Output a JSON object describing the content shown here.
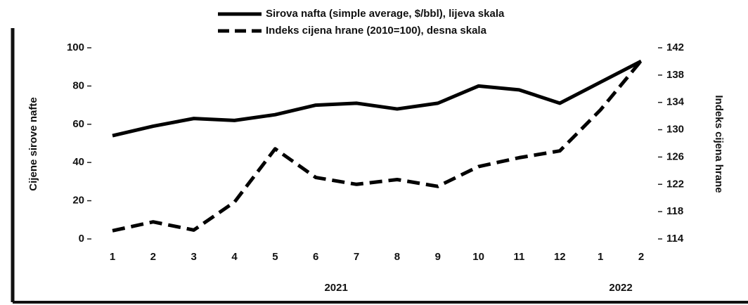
{
  "chart_data": {
    "type": "line",
    "legend": "top",
    "categories": [
      "1",
      "2",
      "3",
      "4",
      "5",
      "6",
      "7",
      "8",
      "9",
      "10",
      "11",
      "12",
      "1",
      "2"
    ],
    "year_labels": [
      "2021",
      "2022"
    ],
    "year_spans": [
      [
        0,
        11
      ],
      [
        12,
        13
      ]
    ],
    "ylabel": "Cijene sirove nafte",
    "y2label": "Indeks cijena hrane",
    "ylim": [
      0,
      100
    ],
    "yticks": [
      0,
      20,
      40,
      60,
      80,
      100
    ],
    "y2lim": [
      114,
      142
    ],
    "y2ticks": [
      114,
      118,
      122,
      126,
      130,
      134,
      138,
      142
    ],
    "series": [
      {
        "name": "Sirova nafta (simple average, $/bbl), lijeva skala",
        "color": "#000000",
        "dash": false,
        "values": [
          54,
          59,
          63,
          62,
          65,
          70,
          71,
          68,
          71,
          80,
          78,
          71,
          82,
          93
        ]
      },
      {
        "name": "Indeks cijena hrane (2010=100), desna skala",
        "color": "#000000",
        "dash": true,
        "axis": "y2",
        "values": [
          115.2,
          116.5,
          115.3,
          119.4,
          127.2,
          123,
          122,
          122.7,
          121.7,
          124.6,
          125.9,
          126.9,
          132.9,
          140.1
        ]
      }
    ]
  }
}
